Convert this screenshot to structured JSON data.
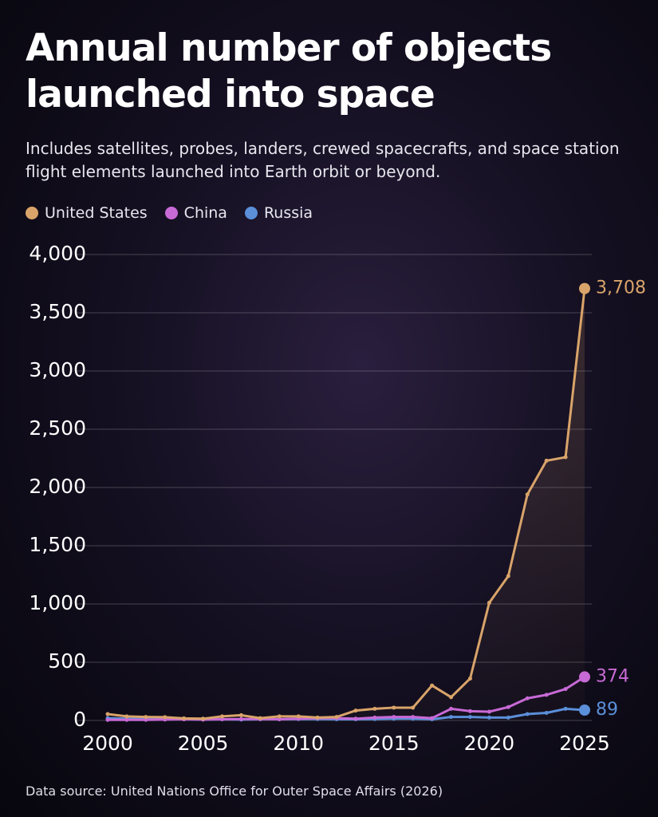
{
  "chart_data": {
    "type": "line",
    "title": "Annual number of objects launched into space",
    "subtitle": "Includes satellites, probes, landers, crewed spacecrafts, and space station flight elements launched into Earth orbit or beyond.",
    "source": "Data source: United Nations Office for Outer Space Affairs (2026)",
    "x": [
      2000,
      2001,
      2002,
      2003,
      2004,
      2005,
      2006,
      2007,
      2008,
      2009,
      2010,
      2011,
      2012,
      2013,
      2014,
      2015,
      2016,
      2017,
      2018,
      2019,
      2020,
      2021,
      2022,
      2023,
      2024,
      2025
    ],
    "xlim": [
      2000,
      2025
    ],
    "xticks": [
      2000,
      2005,
      2010,
      2015,
      2020,
      2025
    ],
    "ylim": [
      0,
      4000
    ],
    "yticks": [
      0,
      500,
      {
        "value": 1000,
        "label": "1,000"
      },
      {
        "value": 1500,
        "label": "1,500"
      },
      {
        "value": 2000,
        "label": "2,000"
      },
      {
        "value": 2500,
        "label": "2,500"
      },
      {
        "value": 3000,
        "label": "3,000"
      },
      {
        "value": 3500,
        "label": "3,500"
      },
      {
        "value": 4000,
        "label": "4,000"
      }
    ],
    "grid": true,
    "series": [
      {
        "name": "United States",
        "color": "#d9a46a",
        "values": [
          55,
          35,
          30,
          28,
          18,
          15,
          35,
          45,
          20,
          35,
          35,
          25,
          30,
          85,
          100,
          110,
          110,
          300,
          200,
          360,
          1010,
          1240,
          1940,
          2230,
          2260,
          3708
        ],
        "value_labels": [
          null,
          null,
          null,
          null,
          null,
          null,
          null,
          null,
          null,
          null,
          null,
          null,
          null,
          null,
          null,
          null,
          null,
          null,
          null,
          null,
          null,
          null,
          null,
          null,
          null,
          "3,708"
        ]
      },
      {
        "name": "China",
        "color": "#c86ad6",
        "values": [
          5,
          5,
          5,
          8,
          10,
          8,
          10,
          12,
          12,
          10,
          15,
          20,
          20,
          15,
          25,
          30,
          30,
          20,
          100,
          80,
          75,
          115,
          190,
          220,
          270,
          374
        ],
        "value_labels": [
          null,
          null,
          null,
          null,
          null,
          null,
          null,
          null,
          null,
          null,
          null,
          null,
          null,
          null,
          null,
          null,
          null,
          null,
          null,
          null,
          null,
          null,
          null,
          null,
          null,
          "374"
        ]
      },
      {
        "name": "Russia",
        "color": "#5b8fd9",
        "values": [
          20,
          15,
          15,
          10,
          10,
          8,
          10,
          8,
          10,
          10,
          12,
          12,
          10,
          10,
          12,
          15,
          15,
          10,
          30,
          30,
          25,
          25,
          55,
          65,
          100,
          89
        ],
        "value_labels": [
          null,
          null,
          null,
          null,
          null,
          null,
          null,
          null,
          null,
          null,
          null,
          null,
          null,
          null,
          null,
          null,
          null,
          null,
          null,
          null,
          null,
          null,
          null,
          null,
          null,
          "89"
        ]
      }
    ]
  }
}
